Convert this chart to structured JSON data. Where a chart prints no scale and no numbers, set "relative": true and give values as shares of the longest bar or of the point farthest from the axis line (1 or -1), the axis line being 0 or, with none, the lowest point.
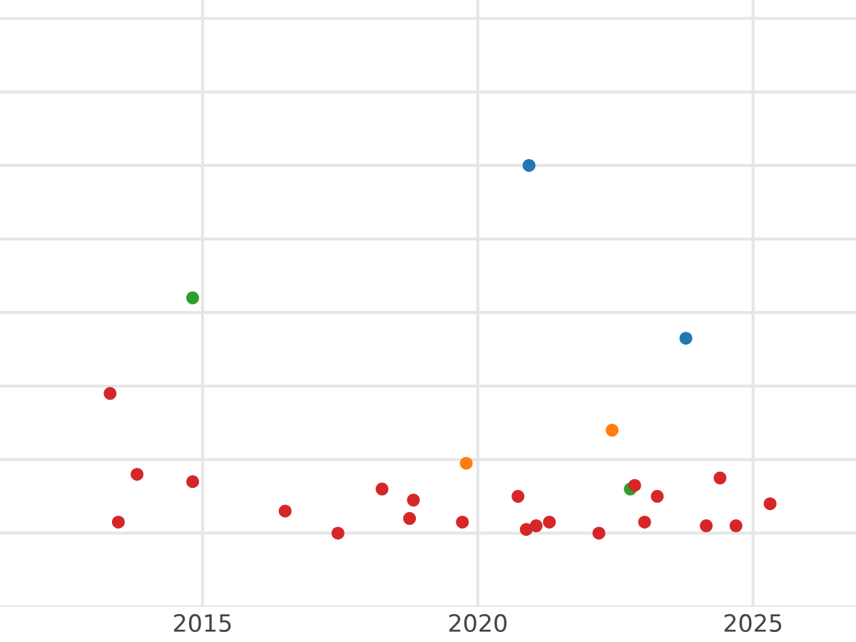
{
  "chart_data": {
    "type": "scatter",
    "relative": true,
    "xlim": [
      2011.32,
      2026.87
    ],
    "xticks": [
      2015,
      2020,
      2025
    ],
    "tick_labels": "x",
    "grid": true,
    "legend": false,
    "marker": "circle",
    "series": [
      {
        "color": "#1f77b4",
        "x": [
          2020.93,
          2023.78
        ],
        "values": [
          1.0,
          0.53
        ]
      },
      {
        "color": "#2ca02c",
        "x": [
          2014.82,
          2022.77
        ],
        "values": [
          0.64,
          0.12
        ]
      },
      {
        "color": "#ff7f0e",
        "x": [
          2019.79,
          2022.44
        ],
        "values": [
          0.19,
          0.28
        ]
      },
      {
        "color": "#d62728",
        "x": [
          2013.32,
          2013.81,
          2013.47,
          2014.82,
          2016.5,
          2017.46,
          2018.26,
          2018.76,
          2018.83,
          2019.72,
          2020.73,
          2020.88,
          2021.06,
          2021.3,
          2022.2,
          2022.85,
          2023.03,
          2023.26,
          2024.15,
          2024.4,
          2024.69,
          2025.31
        ],
        "values": [
          0.38,
          0.16,
          0.03,
          0.14,
          0.06,
          0.0,
          0.12,
          0.04,
          0.09,
          0.03,
          0.1,
          0.01,
          0.02,
          0.03,
          0.0,
          0.13,
          0.03,
          0.1,
          0.02,
          0.15,
          0.02,
          0.08
        ]
      }
    ]
  }
}
